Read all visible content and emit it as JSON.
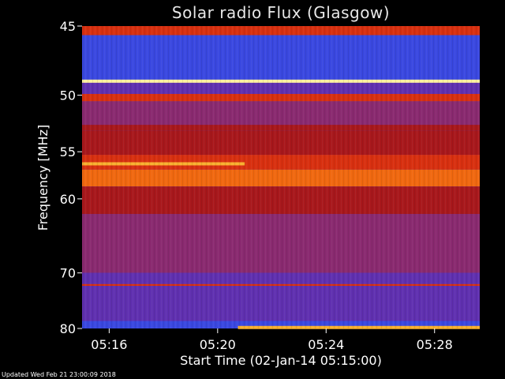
{
  "chart_data": {
    "type": "heatmap",
    "title": "Solar radio Flux (Glasgow)",
    "ylabel": "Frequency [MHz]",
    "xlabel": "Start Time (02-Jan-14 05:15:00)",
    "y_ticks": [
      "45",
      "50",
      "55",
      "60",
      "70",
      "80"
    ],
    "x_ticks": [
      "05:16",
      "05:20",
      "05:24",
      "05:28"
    ],
    "y_range": [
      45,
      80
    ],
    "y_scale": "reciprocal",
    "x_range": [
      "05:15:00",
      "05:29:40"
    ],
    "x_ticks_time": [
      "05:16",
      "05:20",
      "05:24",
      "05:28"
    ],
    "y_ticks_values": [
      45,
      50,
      55,
      60,
      70,
      80
    ],
    "colormap": [
      "#1010a8",
      "#3a48e0",
      "#6030b0",
      "#8a2a70",
      "#a8181c",
      "#d83010",
      "#f06810",
      "#f8b030",
      "#fff0a0"
    ],
    "bands": [
      {
        "freq_start": 45.0,
        "freq_end": 45.6,
        "level": 5
      },
      {
        "freq_start": 45.6,
        "freq_end": 48.8,
        "level": 1
      },
      {
        "freq_start": 48.8,
        "freq_end": 49.0,
        "level": 8
      },
      {
        "freq_start": 49.0,
        "freq_end": 49.9,
        "level": 2
      },
      {
        "freq_start": 49.9,
        "freq_end": 50.5,
        "level": 5
      },
      {
        "freq_start": 50.5,
        "freq_end": 52.5,
        "level": 3
      },
      {
        "freq_start": 52.5,
        "freq_end": 53.0,
        "level": 4
      },
      {
        "freq_start": 53.0,
        "freq_end": 55.3,
        "level": 4
      },
      {
        "freq_start": 55.3,
        "freq_end": 56.8,
        "level": 5
      },
      {
        "freq_start": 56.8,
        "freq_end": 58.6,
        "level": 6
      },
      {
        "freq_start": 58.6,
        "freq_end": 61.8,
        "level": 4
      },
      {
        "freq_start": 61.8,
        "freq_end": 70.0,
        "level": 3
      },
      {
        "freq_start": 70.0,
        "freq_end": 71.8,
        "level": 2
      },
      {
        "freq_start": 71.8,
        "freq_end": 72.1,
        "level": 5
      },
      {
        "freq_start": 72.1,
        "freq_end": 78.5,
        "level": 2
      },
      {
        "freq_start": 78.5,
        "freq_end": 80.0,
        "level": 1
      }
    ],
    "features": [
      {
        "name": "narrowband-line-49MHz",
        "freq": 48.9,
        "time_start": "05:15:00",
        "time_end": "05:29:40",
        "level": 8
      },
      {
        "name": "interference-56MHz",
        "freq": 56.2,
        "time_start": "05:15:00",
        "time_end": "05:21:00",
        "level": 7
      },
      {
        "name": "interference-80MHz",
        "freq": 79.8,
        "time_start": "05:20:45",
        "time_end": "05:29:40",
        "level": 7
      }
    ]
  },
  "footer": {
    "updated_text": "Updated Wed Feb 21 23:00:09 2018"
  }
}
